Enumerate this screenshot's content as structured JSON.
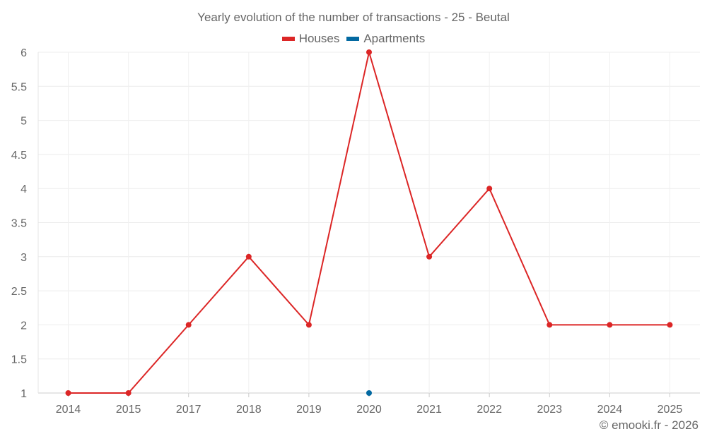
{
  "chart_data": {
    "type": "line",
    "title": "Yearly evolution of the number of transactions - 25 - Beutal",
    "categories": [
      "2014",
      "2015",
      "2017",
      "2018",
      "2019",
      "2020",
      "2021",
      "2022",
      "2023",
      "2024",
      "2025"
    ],
    "series": [
      {
        "name": "Houses",
        "color": "#dc2626",
        "values": [
          1,
          1,
          2,
          3,
          2,
          6,
          3,
          4,
          2,
          2,
          2
        ]
      },
      {
        "name": "Apartments",
        "color": "#0369a1",
        "values": [
          null,
          null,
          null,
          null,
          null,
          1,
          null,
          null,
          null,
          null,
          null
        ]
      }
    ],
    "ylim": [
      1,
      6
    ],
    "yticks": [
      "1",
      "1.5",
      "2",
      "2.5",
      "3",
      "3.5",
      "4",
      "4.5",
      "5",
      "5.5",
      "6"
    ],
    "grid": true,
    "legend": "top-center",
    "xlabel": "",
    "ylabel": ""
  },
  "footer": "© emooki.fr - 2026"
}
